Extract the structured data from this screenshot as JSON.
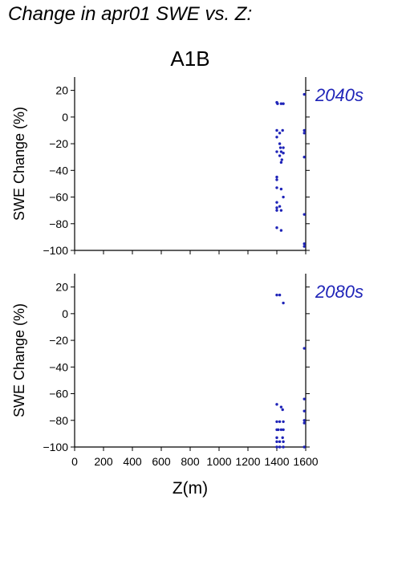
{
  "title": "Change in apr01 SWE vs. Z:",
  "colors": {
    "points": "#1f24b8",
    "annotation": "#1f24b8",
    "axes": "#000000"
  },
  "chart_data": [
    {
      "type": "scatter",
      "title": "A1B",
      "annotation": "2040s",
      "xlabel": "",
      "ylabel": "SWE Change (%)",
      "xlim": [
        0,
        1600
      ],
      "ylim": [
        -100,
        30
      ],
      "xticks": [
        0,
        200,
        400,
        600,
        800,
        1000,
        1200,
        1400,
        1600
      ],
      "yticks": [
        -100,
        -80,
        -60,
        -40,
        -20,
        0,
        20
      ],
      "show_xtick_labels": false,
      "points": [
        {
          "x": 1400,
          "y": 11
        },
        {
          "x": 1405,
          "y": 10
        },
        {
          "x": 1430,
          "y": 10
        },
        {
          "x": 1445,
          "y": 10
        },
        {
          "x": 1400,
          "y": -10
        },
        {
          "x": 1420,
          "y": -12
        },
        {
          "x": 1440,
          "y": -10
        },
        {
          "x": 1400,
          "y": -15
        },
        {
          "x": 1420,
          "y": -20
        },
        {
          "x": 1425,
          "y": -23
        },
        {
          "x": 1445,
          "y": -23
        },
        {
          "x": 1400,
          "y": -26
        },
        {
          "x": 1430,
          "y": -26
        },
        {
          "x": 1445,
          "y": -27
        },
        {
          "x": 1420,
          "y": -29
        },
        {
          "x": 1435,
          "y": -32
        },
        {
          "x": 1430,
          "y": -34
        },
        {
          "x": 1400,
          "y": -45
        },
        {
          "x": 1400,
          "y": -47
        },
        {
          "x": 1400,
          "y": -53
        },
        {
          "x": 1430,
          "y": -54
        },
        {
          "x": 1445,
          "y": -60
        },
        {
          "x": 1400,
          "y": -64
        },
        {
          "x": 1420,
          "y": -67
        },
        {
          "x": 1400,
          "y": -68
        },
        {
          "x": 1400,
          "y": -70
        },
        {
          "x": 1430,
          "y": -70
        },
        {
          "x": 1400,
          "y": -83
        },
        {
          "x": 1430,
          "y": -85
        },
        {
          "x": 1590,
          "y": 17
        },
        {
          "x": 1590,
          "y": -10
        },
        {
          "x": 1590,
          "y": -12
        },
        {
          "x": 1590,
          "y": -30
        },
        {
          "x": 1590,
          "y": -73
        },
        {
          "x": 1590,
          "y": -95
        },
        {
          "x": 1590,
          "y": -97
        }
      ]
    },
    {
      "type": "scatter",
      "title": "",
      "annotation": "2080s",
      "xlabel": "Z(m)",
      "ylabel": "SWE Change (%)",
      "xlim": [
        0,
        1600
      ],
      "ylim": [
        -100,
        30
      ],
      "xticks": [
        0,
        200,
        400,
        600,
        800,
        1000,
        1200,
        1400,
        1600
      ],
      "yticks": [
        -100,
        -80,
        -60,
        -40,
        -20,
        0,
        20
      ],
      "show_xtick_labels": true,
      "points": [
        {
          "x": 1400,
          "y": 14
        },
        {
          "x": 1420,
          "y": 14
        },
        {
          "x": 1445,
          "y": 8
        },
        {
          "x": 1400,
          "y": -68
        },
        {
          "x": 1430,
          "y": -70
        },
        {
          "x": 1440,
          "y": -72
        },
        {
          "x": 1400,
          "y": -81
        },
        {
          "x": 1420,
          "y": -81
        },
        {
          "x": 1445,
          "y": -81
        },
        {
          "x": 1400,
          "y": -87
        },
        {
          "x": 1410,
          "y": -87
        },
        {
          "x": 1430,
          "y": -87
        },
        {
          "x": 1445,
          "y": -87
        },
        {
          "x": 1400,
          "y": -93
        },
        {
          "x": 1440,
          "y": -93
        },
        {
          "x": 1400,
          "y": -96
        },
        {
          "x": 1420,
          "y": -96
        },
        {
          "x": 1445,
          "y": -96
        },
        {
          "x": 1400,
          "y": -100
        },
        {
          "x": 1420,
          "y": -100
        },
        {
          "x": 1445,
          "y": -100
        },
        {
          "x": 1590,
          "y": -26
        },
        {
          "x": 1590,
          "y": -64
        },
        {
          "x": 1590,
          "y": -73
        },
        {
          "x": 1590,
          "y": -80
        },
        {
          "x": 1590,
          "y": -82
        },
        {
          "x": 1590,
          "y": -100
        }
      ]
    }
  ]
}
